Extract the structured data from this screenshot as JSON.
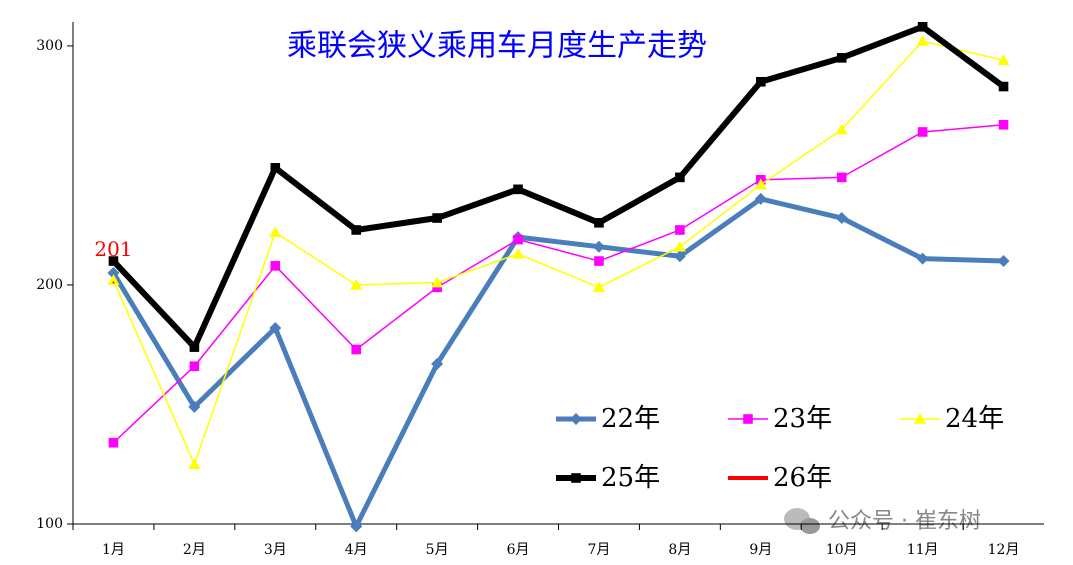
{
  "chart_data": {
    "type": "line",
    "title": "乘联会狭义乘用车月度生产走势",
    "categories": [
      "1月",
      "2月",
      "3月",
      "4月",
      "5月",
      "6月",
      "7月",
      "8月",
      "9月",
      "10月",
      "11月",
      "12月"
    ],
    "series": [
      {
        "name": "22年",
        "color": "#4a7ebb",
        "marker": "diamond",
        "values": [
          205,
          149,
          182,
          99,
          167,
          220,
          216,
          212,
          236,
          228,
          211,
          210
        ]
      },
      {
        "name": "23年",
        "color": "#ff00ff",
        "marker": "square",
        "values": [
          134,
          166,
          208,
          173,
          199,
          219,
          210,
          223,
          244,
          245,
          264,
          267
        ]
      },
      {
        "name": "24年",
        "color": "#ffff00",
        "marker": "triangle",
        "values": [
          202,
          125,
          222,
          200,
          201,
          213,
          199,
          216,
          242,
          265,
          302,
          294
        ]
      },
      {
        "name": "25年",
        "color": "#000000",
        "marker": "square",
        "values": [
          210,
          174,
          249,
          223,
          228,
          240,
          226,
          245,
          285,
          295,
          308,
          283
        ]
      },
      {
        "name": "26年",
        "color": "#ff0000",
        "marker": "none",
        "values": [
          201,
          null,
          null,
          null,
          null,
          null,
          null,
          null,
          null,
          null,
          null,
          null
        ],
        "value_labels": [
          "201",
          null,
          null,
          null,
          null,
          null,
          null,
          null,
          null,
          null,
          null,
          null
        ]
      }
    ],
    "ylim": [
      100,
      310
    ],
    "yticks": [
      100,
      200,
      300
    ],
    "watermark": "公众号 · 崔东树"
  }
}
